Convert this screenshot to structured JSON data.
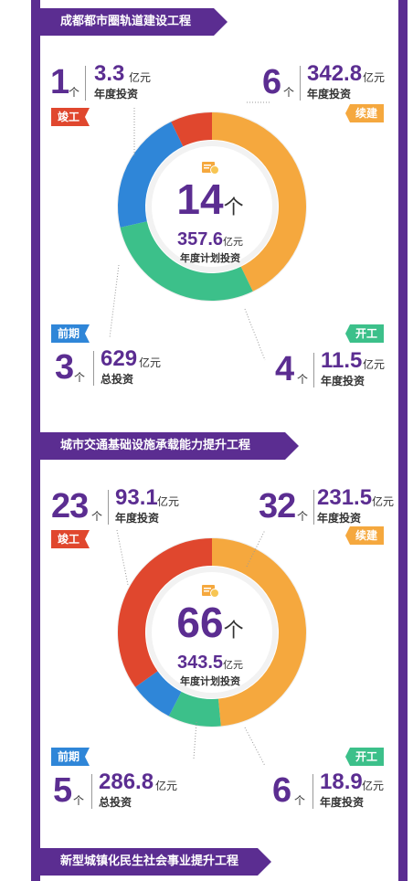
{
  "unit_ge": "个",
  "unit_yi": "亿元",
  "colors": {
    "purple": "#5b2d91",
    "red": "#e0472e",
    "orange": "#f5a83e",
    "yellow": "#f7c553",
    "green": "#3cc08a",
    "blue": "#2f86d8",
    "ring_bg": "#efefef"
  },
  "icon": "document-coin-icon",
  "section1": {
    "title": "成都都市圈轨道建设工程",
    "center": {
      "count": "14",
      "amount": "357.6",
      "label": "年度计划投资"
    },
    "stats": {
      "jungong": {
        "badge": "竣工",
        "count": "1",
        "amount": "3.3",
        "desc": "年度投资"
      },
      "xujian": {
        "badge": "续建",
        "count": "6",
        "amount": "342.8",
        "desc": "年度投资"
      },
      "qianqi": {
        "badge": "前期",
        "count": "3",
        "amount": "629",
        "desc": "总投资"
      },
      "kaigong": {
        "badge": "开工",
        "count": "4",
        "amount": "11.5",
        "desc": "年度投资"
      }
    }
  },
  "section2": {
    "title": "城市交通基础设施承载能力提升工程",
    "center": {
      "count": "66",
      "amount": "343.5",
      "label": "年度计划投资"
    },
    "stats": {
      "jungong": {
        "badge": "竣工",
        "count": "23",
        "amount": "93.1",
        "desc": "年度投资"
      },
      "xujian": {
        "badge": "续建",
        "count": "32",
        "amount": "231.5",
        "desc": "年度投资"
      },
      "qianqi": {
        "badge": "前期",
        "count": "5",
        "amount": "286.8",
        "desc": "总投资"
      },
      "kaigong": {
        "badge": "开工",
        "count": "6",
        "amount": "18.9",
        "desc": "年度投资"
      }
    }
  },
  "section3": {
    "title": "新型城镇化民生社会事业提升工程"
  },
  "chart_data": [
    {
      "type": "pie",
      "title": "成都都市圈轨道建设工程",
      "categories": [
        "续建",
        "开工",
        "前期",
        "竣工"
      ],
      "values": [
        6,
        4,
        3,
        1
      ],
      "colors": [
        "#f5a83e",
        "#3cc08a",
        "#2f86d8",
        "#e0472e"
      ]
    },
    {
      "type": "pie",
      "title": "城市交通基础设施承载能力提升工程",
      "categories": [
        "续建",
        "开工",
        "前期",
        "竣工"
      ],
      "values": [
        32,
        6,
        5,
        23
      ],
      "colors": [
        "#f5a83e",
        "#3cc08a",
        "#2f86d8",
        "#e0472e"
      ]
    }
  ]
}
